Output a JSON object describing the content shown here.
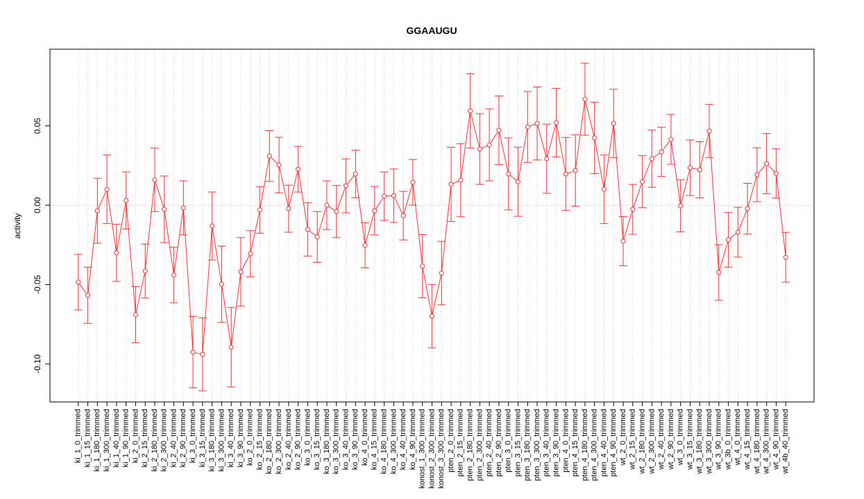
{
  "chart_data": {
    "type": "line",
    "title": "GGAAUGU",
    "y_label": "activity",
    "categories": [
      "ki_1_0_trimmed",
      "ki_1_15_trimmed",
      "ki_1_180_trimmed",
      "ki_1_300_trimmed",
      "ki_1_40_trimmed",
      "ki_1_90_trimmed",
      "ki_2_0_trimmed",
      "ki_2_15_trimmed",
      "ki_2_180_trimmed",
      "ki_2_300_trimmed",
      "ki_2_40_trimmed",
      "ki_2_90_trimmed",
      "ki_3_0_trimmed",
      "ki_3_15_trimmed",
      "ki_3_180_trimmed",
      "ki_3_300_trimmed",
      "ki_3_40_trimmed",
      "ki_3_90_trimmed",
      "ko_2_0_trimmed",
      "ko_2_15_trimmed",
      "ko_2_180_trimmed",
      "ko_2_300_trimmed",
      "ko_2_40_trimmed",
      "ko_2_90_trimmed",
      "ko_3_0_trimmed",
      "ko_3_15_trimmed",
      "ko_3_180_trimmed",
      "ko_3_300_trimmed",
      "ko_3_40_trimmed",
      "ko_3_90_trimmed",
      "ko_4_0_trimmed",
      "ko_4_15_trimmed",
      "ko_4_180_trimmed",
      "ko_4_300_trimmed",
      "ko_4_40_trimmed",
      "ko_4_90_trimmed",
      "konost_1_300_trimmed",
      "konost_2_300_trimmed",
      "konost_3_300_trimmed",
      "pten_2_0_trimmed",
      "pten_2_15_trimmed",
      "pten_2_180_trimmed",
      "pten_2_300_trimmed",
      "pten_2_40_trimmed",
      "pten_2_90_trimmed",
      "pten_3_0_trimmed",
      "pten_3_15_trimmed",
      "pten_3_180_trimmed",
      "pten_3_300_trimmed",
      "pten_3_40_trimmed",
      "pten_3_90_trimmed",
      "pten_4_0_trimmed",
      "pten_4_15_trimmed",
      "pten_4_180_trimmed",
      "pten_4_300_trimmed",
      "pten_4_40_trimmed",
      "pten_4_90_trimmed",
      "wt_2_0_trimmed",
      "wt_2_15_trimmed",
      "wt_2_180_trimmed",
      "wt_2_300_trimmed",
      "wt_2_40_trimmed",
      "wt_2_90_trimmed",
      "wt_3_0_trimmed",
      "wt_3_15_trimmed",
      "wt_3_180_trimmed",
      "wt_3_300_trimmed",
      "wt_3_90_trimmed",
      "wt_3b_0_trimmed",
      "wt_4_0_trimmed",
      "wt_4_15_trimmed",
      "wt_4_180_trimmed",
      "wt_4_300_trimmed",
      "wt_4_90_trimmed",
      "wt_4b_40_trimmed"
    ],
    "series": [
      {
        "color": "#ee3333",
        "values": [
          -0.0485,
          -0.0568,
          -0.0035,
          0.01,
          -0.03,
          0.003,
          -0.069,
          -0.0415,
          0.016,
          -0.0026,
          -0.044,
          -0.0017,
          -0.0926,
          -0.094,
          -0.0131,
          -0.0498,
          -0.0895,
          -0.042,
          -0.0306,
          -0.003,
          0.031,
          0.0253,
          -0.0022,
          0.0227,
          -0.0153,
          -0.02,
          0.0,
          -0.004,
          0.0122,
          0.0197,
          -0.0253,
          -0.0035,
          0.0057,
          0.006,
          -0.0066,
          0.0144,
          -0.0384,
          -0.0699,
          -0.0428,
          0.0131,
          0.0157,
          0.0594,
          0.0354,
          0.038,
          0.0472,
          0.0197,
          0.0148,
          0.0493,
          0.0515,
          0.0293,
          0.052,
          0.0197,
          0.0218,
          0.0668,
          0.0424,
          0.01,
          0.0515,
          -0.0227,
          -0.0026,
          0.0148,
          0.0293,
          0.0336,
          0.0415,
          -0.0004,
          0.0236,
          0.0223,
          0.0467,
          -0.0424,
          -0.0218,
          -0.017,
          -0.0022,
          0.0192,
          0.0262,
          0.02,
          -0.0328
        ],
        "errors": [
          0.0175,
          0.0177,
          0.0205,
          0.0216,
          0.018,
          0.018,
          0.0177,
          0.017,
          0.02,
          0.021,
          0.0175,
          0.017,
          0.0225,
          0.023,
          0.0214,
          0.024,
          0.025,
          0.0216,
          0.0146,
          0.0146,
          0.016,
          0.0175,
          0.0148,
          0.0144,
          0.0168,
          0.016,
          0.0153,
          0.0164,
          0.017,
          0.015,
          0.0142,
          0.0153,
          0.0153,
          0.0168,
          0.0153,
          0.0144,
          0.0199,
          0.02,
          0.02,
          0.0234,
          0.023,
          0.0234,
          0.0223,
          0.0227,
          0.0216,
          0.0227,
          0.0218,
          0.0223,
          0.023,
          0.0218,
          0.0216,
          0.023,
          0.0225,
          0.0227,
          0.0225,
          0.0216,
          0.0216,
          0.0155,
          0.0157,
          0.0164,
          0.018,
          0.0155,
          0.0157,
          0.0164,
          0.0175,
          0.0177,
          0.0168,
          0.0175,
          0.0172,
          0.0157,
          0.016,
          0.017,
          0.019,
          0.0155,
          0.0157
        ]
      }
    ],
    "ylim": [
      -0.124,
      0.0983
    ],
    "yticks": [
      {
        "value": -0.1,
        "label": "-0.10"
      },
      -0.05,
      {
        "value": 0,
        "label": "0.00"
      },
      0.05
    ],
    "hline": 0,
    "grid": true
  }
}
